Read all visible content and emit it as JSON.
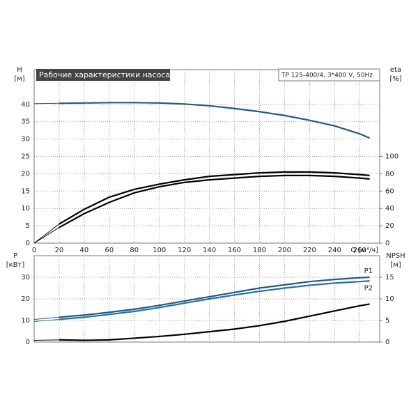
{
  "chart_data": [
    {
      "type": "line",
      "title": "Рабочие характеристики насоса",
      "subtitle": "TP 125-400/4, 3*400 V, 50Hz",
      "y_label": "H",
      "y_unit": "[м]",
      "y2_label": "eta",
      "y2_unit": "[%]",
      "x_label": "Q [м³/ч]",
      "x": [
        0,
        20,
        40,
        60,
        80,
        100,
        120,
        140,
        160,
        180,
        200,
        220,
        240,
        260,
        268
      ],
      "xlim": [
        0,
        276
      ],
      "xticks": [
        0,
        20,
        40,
        60,
        80,
        100,
        120,
        140,
        160,
        180,
        200,
        220,
        240,
        260
      ],
      "ylim": [
        0,
        50
      ],
      "yticks": [
        0,
        5,
        10,
        15,
        20,
        25,
        30,
        35,
        40
      ],
      "y2lim": [
        0,
        200
      ],
      "y2ticks": [
        0,
        20,
        40,
        60,
        80,
        100
      ],
      "grid": true,
      "series": [
        {
          "color": "#1f5a8a",
          "values": [
            40.2,
            40.3,
            40.4,
            40.5,
            40.5,
            40.4,
            40.1,
            39.6,
            38.8,
            37.9,
            36.8,
            35.4,
            33.8,
            31.5,
            30.3
          ]
        },
        {
          "color": "#000000",
          "axis": "y2",
          "values": [
            0,
            22,
            39,
            53,
            62,
            68,
            73,
            77,
            79,
            81,
            82,
            82,
            81,
            79,
            78
          ]
        },
        {
          "color": "#000000",
          "axis": "y2",
          "values": [
            0,
            18,
            34,
            47,
            58,
            65,
            70,
            73,
            75,
            77,
            78,
            78,
            77,
            75,
            74
          ]
        }
      ]
    },
    {
      "type": "line",
      "y_label": "P",
      "y_unit": "[кВт]",
      "y2_label": "NPSH",
      "y2_unit": "[м]",
      "x": [
        0,
        20,
        40,
        60,
        80,
        100,
        120,
        140,
        160,
        180,
        200,
        220,
        240,
        260,
        268
      ],
      "xlim": [
        0,
        276
      ],
      "ylim": [
        0,
        40
      ],
      "yticks": [
        0,
        10,
        20,
        30
      ],
      "y2lim": [
        0,
        20
      ],
      "y2ticks": [
        0,
        5,
        10,
        15
      ],
      "grid": true,
      "series": [
        {
          "name": "P1",
          "color": "#1f5a8a",
          "values": [
            10.5,
            11.5,
            12.5,
            13.8,
            15.2,
            17,
            19,
            21,
            23,
            25,
            26.5,
            28,
            29,
            29.8,
            30
          ]
        },
        {
          "name": "P2",
          "color": "#2a6ea8",
          "values": [
            9.5,
            10.5,
            11.5,
            12.8,
            14.2,
            16,
            18,
            20,
            21.8,
            23.5,
            25,
            26.3,
            27.3,
            28,
            28.3
          ]
        },
        {
          "color": "#000000",
          "axis": "y2",
          "values": [
            0.4,
            0.5,
            0.4,
            0.5,
            0.9,
            1.3,
            1.8,
            2.4,
            3,
            3.8,
            4.8,
            6,
            7.2,
            8.4,
            8.8
          ]
        }
      ]
    }
  ]
}
